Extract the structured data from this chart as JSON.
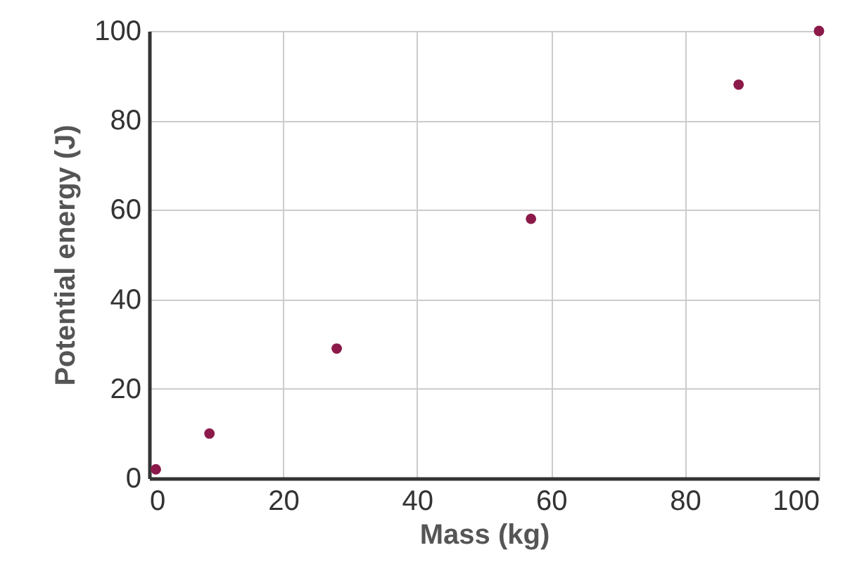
{
  "chart_data": {
    "type": "scatter",
    "xlabel": "Mass (kg)",
    "ylabel": "Potential energy (J)",
    "x": [
      1,
      9,
      28,
      57,
      88,
      100
    ],
    "series": [
      {
        "color": "#8b1a4a",
        "values": [
          2,
          10,
          29,
          58,
          88,
          100
        ]
      }
    ],
    "xlim": [
      0,
      100
    ],
    "xticks": [
      0,
      20,
      40,
      60,
      80,
      100
    ],
    "ylim": [
      0,
      100
    ],
    "yticks": [
      0,
      20,
      40,
      60,
      80,
      100
    ],
    "grid": true,
    "marker": "circle"
  }
}
